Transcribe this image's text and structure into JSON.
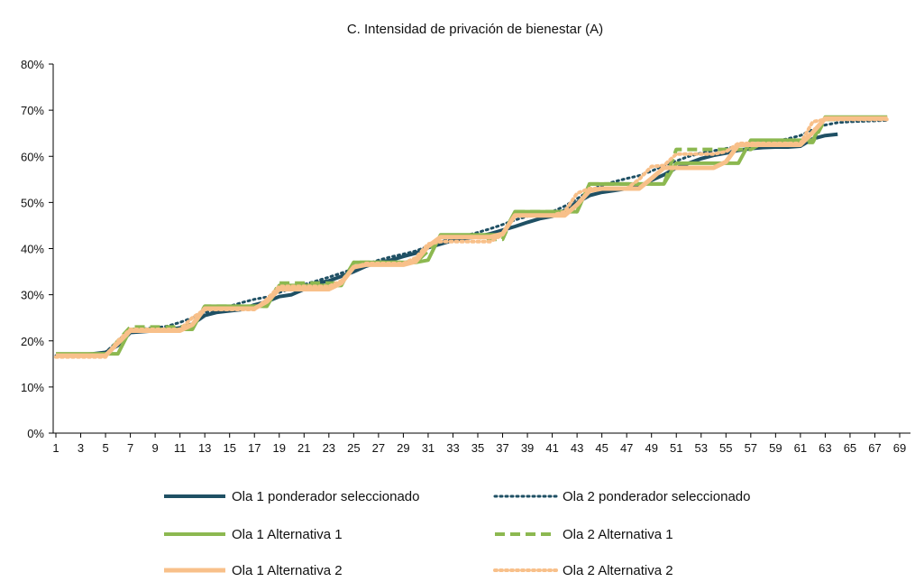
{
  "chart_data": {
    "type": "line",
    "title": "C. Intensidad de privación de bienestar (A)",
    "xlabel": "",
    "ylabel": "",
    "x": [
      1,
      2,
      3,
      4,
      5,
      6,
      7,
      8,
      9,
      10,
      11,
      12,
      13,
      14,
      15,
      16,
      17,
      18,
      19,
      20,
      21,
      22,
      23,
      24,
      25,
      26,
      27,
      28,
      29,
      30,
      31,
      32,
      33,
      34,
      35,
      36,
      37,
      38,
      39,
      40,
      41,
      42,
      43,
      44,
      45,
      46,
      47,
      48,
      49,
      50,
      51,
      52,
      53,
      54,
      55,
      56,
      57,
      58,
      59,
      60,
      61,
      62,
      63,
      64,
      65,
      66,
      67,
      68,
      69
    ],
    "x_tick_labels": [
      "1",
      "3",
      "5",
      "7",
      "9",
      "11",
      "13",
      "15",
      "17",
      "19",
      "21",
      "23",
      "25",
      "27",
      "29",
      "31",
      "33",
      "35",
      "37",
      "39",
      "41",
      "43",
      "45",
      "47",
      "49",
      "51",
      "53",
      "55",
      "57",
      "59",
      "61",
      "63",
      "65",
      "67",
      "69"
    ],
    "y_tick_labels": [
      "0%",
      "10%",
      "20%",
      "30%",
      "40%",
      "50%",
      "60%",
      "70%",
      "80%"
    ],
    "ylim": [
      0,
      0.8
    ],
    "xlim": [
      1,
      69
    ],
    "grid": false,
    "legend_position": "bottom",
    "series": [
      {
        "name": "Ola 1 ponderador seleccionado",
        "color": "#1f5064",
        "style": "solid",
        "width": 4,
        "x": [
          1,
          2,
          3,
          4,
          5,
          6,
          7,
          8,
          9,
          10,
          11,
          12,
          13,
          14,
          15,
          16,
          17,
          18,
          19,
          20,
          21,
          22,
          23,
          24,
          25,
          26,
          27,
          28,
          29,
          30,
          31,
          32,
          33,
          34,
          35,
          36,
          37,
          38,
          39,
          40,
          41,
          42,
          43,
          44,
          45,
          46,
          47,
          48,
          49,
          50,
          51,
          52,
          53,
          54,
          55,
          56,
          57,
          58,
          59,
          60,
          61,
          62,
          63,
          64
        ],
        "values": [
          0.17,
          0.17,
          0.17,
          0.172,
          0.175,
          0.19,
          0.218,
          0.22,
          0.222,
          0.224,
          0.228,
          0.236,
          0.255,
          0.262,
          0.265,
          0.268,
          0.278,
          0.285,
          0.296,
          0.3,
          0.312,
          0.325,
          0.33,
          0.34,
          0.35,
          0.362,
          0.37,
          0.375,
          0.383,
          0.39,
          0.402,
          0.41,
          0.418,
          0.422,
          0.426,
          0.432,
          0.44,
          0.448,
          0.457,
          0.465,
          0.47,
          0.483,
          0.5,
          0.515,
          0.522,
          0.526,
          0.53,
          0.535,
          0.548,
          0.56,
          0.575,
          0.585,
          0.595,
          0.602,
          0.607,
          0.613,
          0.617,
          0.619,
          0.62,
          0.62,
          0.622,
          0.638,
          0.645,
          0.648
        ]
      },
      {
        "name": "Ola 2 ponderador seleccionado",
        "color": "#1f5064",
        "style": "dotted",
        "width": 3,
        "x": [
          1,
          2,
          3,
          4,
          5,
          6,
          7,
          8,
          9,
          10,
          11,
          12,
          13,
          14,
          15,
          16,
          17,
          18,
          19,
          20,
          21,
          22,
          23,
          24,
          25,
          26,
          27,
          28,
          29,
          30,
          31,
          32,
          33,
          34,
          35,
          36,
          37,
          38,
          39,
          40,
          41,
          42,
          43,
          44,
          45,
          46,
          47,
          48,
          49,
          50,
          51,
          52,
          53,
          54,
          55,
          56,
          57,
          58,
          59,
          60,
          61,
          62,
          63,
          64,
          65,
          66,
          67,
          68
        ],
        "values": [
          0.168,
          0.168,
          0.169,
          0.171,
          0.175,
          0.2,
          0.225,
          0.226,
          0.228,
          0.232,
          0.24,
          0.25,
          0.262,
          0.268,
          0.275,
          0.283,
          0.29,
          0.295,
          0.305,
          0.314,
          0.322,
          0.33,
          0.338,
          0.347,
          0.356,
          0.366,
          0.375,
          0.382,
          0.388,
          0.395,
          0.405,
          0.415,
          0.422,
          0.428,
          0.435,
          0.443,
          0.452,
          0.462,
          0.47,
          0.475,
          0.48,
          0.492,
          0.508,
          0.525,
          0.537,
          0.545,
          0.552,
          0.558,
          0.568,
          0.58,
          0.59,
          0.6,
          0.607,
          0.612,
          0.617,
          0.622,
          0.627,
          0.63,
          0.633,
          0.638,
          0.645,
          0.658,
          0.668,
          0.673,
          0.675,
          0.676,
          0.677,
          0.678
        ]
      },
      {
        "name": "Ola 1 Alternativa 1",
        "color": "#8cb850",
        "style": "solid",
        "width": 4,
        "x": [
          1,
          2,
          3,
          4,
          5,
          6,
          7,
          8,
          9,
          10,
          11,
          12,
          13,
          14,
          15,
          16,
          17,
          18,
          19,
          20,
          21,
          22,
          23,
          24,
          25,
          26,
          27,
          28,
          29,
          30,
          31,
          32,
          33,
          34,
          35,
          36,
          37,
          38,
          39,
          40,
          41,
          42,
          43,
          44,
          45,
          46,
          47,
          48,
          49,
          50,
          51,
          52,
          53,
          54,
          55,
          56,
          57,
          58,
          59,
          60,
          61,
          62,
          63,
          64,
          65,
          66,
          67,
          68
        ],
        "values": [
          0.172,
          0.172,
          0.172,
          0.172,
          0.172,
          0.172,
          0.225,
          0.225,
          0.225,
          0.225,
          0.225,
          0.225,
          0.275,
          0.275,
          0.275,
          0.275,
          0.275,
          0.275,
          0.32,
          0.32,
          0.32,
          0.32,
          0.32,
          0.32,
          0.37,
          0.37,
          0.37,
          0.37,
          0.37,
          0.37,
          0.375,
          0.43,
          0.43,
          0.43,
          0.43,
          0.43,
          0.43,
          0.48,
          0.48,
          0.48,
          0.48,
          0.48,
          0.48,
          0.54,
          0.54,
          0.54,
          0.54,
          0.54,
          0.54,
          0.54,
          0.585,
          0.585,
          0.585,
          0.585,
          0.585,
          0.585,
          0.635,
          0.635,
          0.635,
          0.635,
          0.635,
          0.635,
          0.685,
          0.685,
          0.685,
          0.685,
          0.685,
          0.685
        ]
      },
      {
        "name": "Ola 2 Alternativa 1",
        "color": "#8cb850",
        "style": "dashed",
        "width": 4,
        "x": [
          1,
          2,
          3,
          4,
          5,
          6,
          7,
          8,
          9,
          10,
          11,
          12,
          13,
          14,
          15,
          16,
          17,
          18,
          19,
          20,
          21,
          22,
          23,
          24,
          25,
          26,
          27,
          28,
          29,
          30,
          31,
          32,
          33,
          34,
          35,
          36,
          37,
          38,
          39,
          40,
          41,
          42,
          43,
          44,
          45,
          46,
          47,
          48,
          49,
          50,
          51,
          52,
          53,
          54,
          55,
          56,
          57,
          58,
          59,
          60,
          61,
          62,
          63,
          64,
          65,
          66,
          67,
          68
        ],
        "values": [
          0.168,
          0.168,
          0.168,
          0.168,
          0.168,
          0.2,
          0.23,
          0.23,
          0.23,
          0.23,
          0.23,
          0.235,
          0.275,
          0.275,
          0.275,
          0.275,
          0.275,
          0.275,
          0.325,
          0.325,
          0.325,
          0.325,
          0.325,
          0.325,
          0.37,
          0.37,
          0.37,
          0.37,
          0.37,
          0.37,
          0.395,
          0.425,
          0.425,
          0.425,
          0.425,
          0.42,
          0.42,
          0.48,
          0.48,
          0.48,
          0.48,
          0.48,
          0.48,
          0.54,
          0.54,
          0.54,
          0.54,
          0.54,
          0.54,
          0.54,
          0.615,
          0.615,
          0.615,
          0.615,
          0.615,
          0.615,
          0.615,
          0.63,
          0.63,
          0.63,
          0.63,
          0.63,
          0.68,
          0.68,
          0.682,
          0.682,
          0.682,
          0.682
        ]
      },
      {
        "name": "Ola 1 Alternativa 2",
        "color": "#f8c08a",
        "style": "solid",
        "width": 5,
        "x": [
          1,
          2,
          3,
          4,
          5,
          6,
          7,
          8,
          9,
          10,
          11,
          12,
          13,
          14,
          15,
          16,
          17,
          18,
          19,
          20,
          21,
          22,
          23,
          24,
          25,
          26,
          27,
          28,
          29,
          30,
          31,
          32,
          33,
          34,
          35,
          36,
          37,
          38,
          39,
          40,
          41,
          42,
          43,
          44,
          45,
          46,
          47,
          48,
          49,
          50,
          51,
          52,
          53,
          54,
          55,
          56,
          57,
          58,
          59,
          60,
          61,
          62,
          63,
          64,
          65,
          66,
          67,
          68
        ],
        "values": [
          0.168,
          0.168,
          0.168,
          0.168,
          0.168,
          0.195,
          0.222,
          0.222,
          0.222,
          0.222,
          0.222,
          0.235,
          0.27,
          0.27,
          0.27,
          0.27,
          0.27,
          0.285,
          0.312,
          0.312,
          0.312,
          0.312,
          0.312,
          0.325,
          0.36,
          0.365,
          0.365,
          0.365,
          0.365,
          0.372,
          0.405,
          0.425,
          0.425,
          0.425,
          0.425,
          0.425,
          0.432,
          0.472,
          0.472,
          0.472,
          0.472,
          0.472,
          0.495,
          0.525,
          0.53,
          0.53,
          0.53,
          0.53,
          0.552,
          0.575,
          0.575,
          0.575,
          0.575,
          0.575,
          0.588,
          0.625,
          0.625,
          0.625,
          0.625,
          0.625,
          0.625,
          0.652,
          0.682,
          0.682,
          0.682,
          0.682,
          0.682,
          0.682
        ]
      },
      {
        "name": "Ola 2 Alternativa 2",
        "color": "#f8c08a",
        "style": "dotted",
        "width": 4,
        "x": [
          1,
          2,
          3,
          4,
          5,
          6,
          7,
          8,
          9,
          10,
          11,
          12,
          13,
          14,
          15,
          16,
          17,
          18,
          19,
          20,
          21,
          22,
          23,
          24,
          25,
          26,
          27,
          28,
          29,
          30,
          31,
          32,
          33,
          34,
          35,
          36,
          37,
          38,
          39,
          40,
          41,
          42,
          43,
          44,
          45,
          46,
          47,
          48,
          49,
          50,
          51,
          52,
          53,
          54,
          55,
          56,
          57,
          58,
          59,
          60,
          61,
          62,
          63,
          64,
          65,
          66,
          67,
          68
        ],
        "values": [
          0.165,
          0.165,
          0.165,
          0.165,
          0.165,
          0.2,
          0.225,
          0.225,
          0.225,
          0.225,
          0.225,
          0.25,
          0.268,
          0.268,
          0.268,
          0.268,
          0.268,
          0.29,
          0.318,
          0.318,
          0.318,
          0.318,
          0.318,
          0.33,
          0.358,
          0.368,
          0.368,
          0.368,
          0.368,
          0.38,
          0.41,
          0.415,
          0.415,
          0.415,
          0.415,
          0.415,
          0.43,
          0.472,
          0.472,
          0.472,
          0.472,
          0.48,
          0.52,
          0.53,
          0.53,
          0.53,
          0.53,
          0.55,
          0.578,
          0.58,
          0.605,
          0.605,
          0.605,
          0.605,
          0.61,
          0.628,
          0.628,
          0.628,
          0.628,
          0.628,
          0.628,
          0.675,
          0.68,
          0.68,
          0.68,
          0.68,
          0.68,
          0.68
        ]
      }
    ]
  }
}
